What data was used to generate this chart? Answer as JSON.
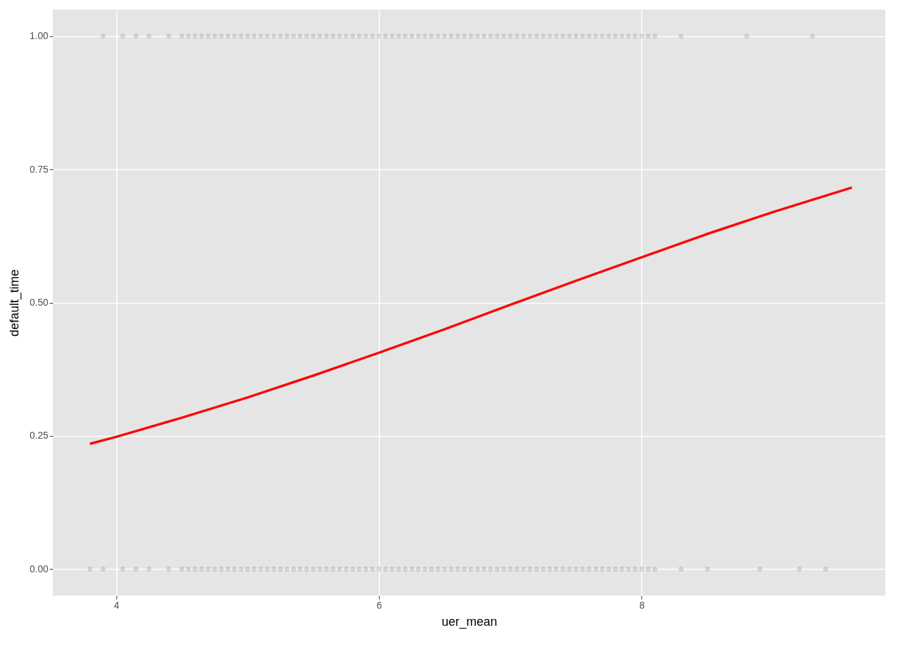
{
  "chart_data": {
    "type": "scatter",
    "xlabel": "uer_mean",
    "ylabel": "default_time",
    "xlim": [
      3.517,
      9.855
    ],
    "ylim": [
      -0.05,
      1.05
    ],
    "xticks": [
      4,
      6,
      8
    ],
    "yticks": [
      {
        "value": 0,
        "label": "0.00"
      },
      {
        "value": 0.25,
        "label": "0.25"
      },
      {
        "value": 0.5,
        "label": "0.50"
      },
      {
        "value": 0.75,
        "label": "0.75"
      },
      {
        "value": 1,
        "label": "1.00"
      }
    ],
    "grid": true,
    "series": [
      {
        "color": "#000000",
        "marker": "circle",
        "x": [
          3.9,
          4.05,
          4.15,
          4.25,
          4.4,
          4.5,
          4.55,
          4.6,
          4.65,
          4.7,
          4.75,
          4.8,
          4.85,
          4.9,
          4.95,
          5,
          5.05,
          5.1,
          5.15,
          5.2,
          5.25,
          5.3,
          5.35,
          5.4,
          5.45,
          5.5,
          5.55,
          5.6,
          5.65,
          5.7,
          5.75,
          5.8,
          5.85,
          5.9,
          5.95,
          6,
          6.05,
          6.1,
          6.15,
          6.2,
          6.25,
          6.3,
          6.35,
          6.4,
          6.45,
          6.5,
          6.55,
          6.6,
          6.65,
          6.7,
          6.75,
          6.8,
          6.85,
          6.9,
          6.95,
          7,
          7.05,
          7.1,
          7.15,
          7.2,
          7.25,
          7.3,
          7.35,
          7.4,
          7.45,
          7.5,
          7.55,
          7.6,
          7.65,
          7.7,
          7.75,
          7.8,
          7.85,
          7.9,
          7.95,
          8,
          8.05,
          8.1,
          8.3,
          8.8,
          9.3
        ],
        "values": [
          1,
          1,
          1,
          1,
          1,
          1,
          1,
          1,
          1,
          1,
          1,
          1,
          1,
          1,
          1,
          1,
          1,
          1,
          1,
          1,
          1,
          1,
          1,
          1,
          1,
          1,
          1,
          1,
          1,
          1,
          1,
          1,
          1,
          1,
          1,
          1,
          1,
          1,
          1,
          1,
          1,
          1,
          1,
          1,
          1,
          1,
          1,
          1,
          1,
          1,
          1,
          1,
          1,
          1,
          1,
          1,
          1,
          1,
          1,
          1,
          1,
          1,
          1,
          1,
          1,
          1,
          1,
          1,
          1,
          1,
          1,
          1,
          1,
          1,
          1,
          1,
          1,
          1,
          1,
          1,
          1
        ]
      },
      {
        "color": "#000000",
        "marker": "circle",
        "x": [
          3.8,
          3.9,
          4.05,
          4.15,
          4.25,
          4.4,
          4.5,
          4.55,
          4.6,
          4.65,
          4.7,
          4.75,
          4.8,
          4.85,
          4.9,
          4.95,
          5,
          5.05,
          5.1,
          5.15,
          5.2,
          5.25,
          5.3,
          5.35,
          5.4,
          5.45,
          5.5,
          5.55,
          5.6,
          5.65,
          5.7,
          5.75,
          5.8,
          5.85,
          5.9,
          5.95,
          6,
          6.05,
          6.1,
          6.15,
          6.2,
          6.25,
          6.3,
          6.35,
          6.4,
          6.45,
          6.5,
          6.55,
          6.6,
          6.65,
          6.7,
          6.75,
          6.8,
          6.85,
          6.9,
          6.95,
          7,
          7.05,
          7.1,
          7.15,
          7.2,
          7.25,
          7.3,
          7.35,
          7.4,
          7.45,
          7.5,
          7.55,
          7.6,
          7.65,
          7.7,
          7.75,
          7.8,
          7.85,
          7.9,
          7.95,
          8,
          8.05,
          8.1,
          8.3,
          8.5,
          8.9,
          9.2,
          9.4
        ],
        "values": [
          0,
          0,
          0,
          0,
          0,
          0,
          0,
          0,
          0,
          0,
          0,
          0,
          0,
          0,
          0,
          0,
          0,
          0,
          0,
          0,
          0,
          0,
          0,
          0,
          0,
          0,
          0,
          0,
          0,
          0,
          0,
          0,
          0,
          0,
          0,
          0,
          0,
          0,
          0,
          0,
          0,
          0,
          0,
          0,
          0,
          0,
          0,
          0,
          0,
          0,
          0,
          0,
          0,
          0,
          0,
          0,
          0,
          0,
          0,
          0,
          0,
          0,
          0,
          0,
          0,
          0,
          0,
          0,
          0,
          0,
          0,
          0,
          0,
          0,
          0,
          0,
          0,
          0,
          0,
          0,
          0,
          0,
          0,
          0
        ]
      },
      {
        "type": "line",
        "color": "#ff0000",
        "marker": "none",
        "line_style": "solid",
        "x": [
          3.8,
          4,
          4.5,
          5,
          5.5,
          6,
          6.5,
          7,
          7.5,
          8,
          8.5,
          9,
          9.6
        ],
        "values": [
          0.235,
          0.248,
          0.284,
          0.322,
          0.363,
          0.406,
          0.45,
          0.496,
          0.541,
          0.585,
          0.629,
          0.67,
          0.716
        ]
      }
    ]
  }
}
